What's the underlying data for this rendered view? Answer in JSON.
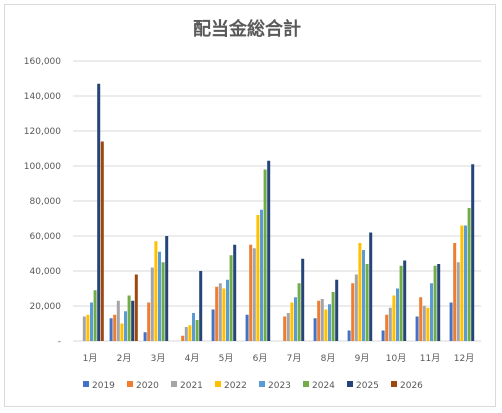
{
  "chart_data": {
    "type": "bar",
    "title": "配当金総合計",
    "xlabel": "",
    "ylabel": "",
    "ylim": [
      0,
      160000
    ],
    "yticks": [
      0,
      20000,
      40000,
      60000,
      80000,
      100000,
      120000,
      140000,
      160000
    ],
    "ytick_labels": [
      "-",
      "20,000",
      "40,000",
      "60,000",
      "80,000",
      "100,000",
      "120,000",
      "140,000",
      "160,000"
    ],
    "grid": true,
    "legend_position": "bottom",
    "categories": [
      "1月",
      "2月",
      "3月",
      "4月",
      "5月",
      "6月",
      "7月",
      "8月",
      "9月",
      "10月",
      "11月",
      "12月"
    ],
    "series": [
      {
        "name": "2019",
        "color": "#4472c4",
        "values": [
          0,
          13000,
          5000,
          0,
          18000,
          15000,
          0,
          13000,
          6000,
          6000,
          14000,
          22000
        ]
      },
      {
        "name": "2020",
        "color": "#ed7d31",
        "values": [
          0,
          15000,
          22000,
          3000,
          31000,
          55000,
          14000,
          23000,
          33000,
          15000,
          25000,
          56000
        ]
      },
      {
        "name": "2021",
        "color": "#a5a5a5",
        "values": [
          14000,
          23000,
          42000,
          8000,
          33000,
          53000,
          16000,
          24000,
          38000,
          19000,
          20000,
          45000
        ]
      },
      {
        "name": "2022",
        "color": "#ffc000",
        "values": [
          15000,
          10000,
          57000,
          9000,
          30000,
          72000,
          22000,
          18000,
          56000,
          26000,
          19000,
          66000
        ]
      },
      {
        "name": "2023",
        "color": "#5b9bd5",
        "values": [
          22000,
          17000,
          51000,
          16000,
          35000,
          75000,
          25000,
          21000,
          52000,
          30000,
          33000,
          66000
        ]
      },
      {
        "name": "2024",
        "color": "#70ad47",
        "values": [
          29000,
          26000,
          45000,
          12000,
          49000,
          98000,
          33000,
          28000,
          44000,
          43000,
          43000,
          76000
        ]
      },
      {
        "name": "2025",
        "color": "#264478",
        "values": [
          147000,
          23000,
          60000,
          40000,
          55000,
          103000,
          47000,
          35000,
          62000,
          46000,
          44000,
          101000
        ]
      },
      {
        "name": "2026",
        "color": "#9e480e",
        "values": [
          114000,
          38000,
          0,
          0,
          0,
          0,
          0,
          0,
          0,
          0,
          0,
          0
        ]
      }
    ]
  }
}
